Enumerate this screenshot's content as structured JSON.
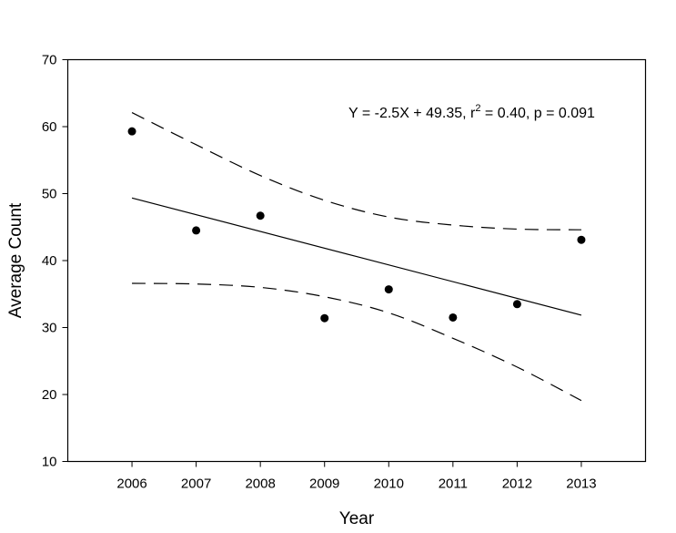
{
  "chart_data": {
    "type": "scatter",
    "title": "",
    "xlabel": "Year",
    "ylabel": "Average Count",
    "xlim": [
      2005,
      2014
    ],
    "ylim": [
      10,
      70
    ],
    "xticks": [
      2006,
      2007,
      2008,
      2009,
      2010,
      2011,
      2012,
      2013
    ],
    "xtick_labels": [
      "2006",
      "2007",
      "2008",
      "2009",
      "2010",
      "2011",
      "2012",
      "2013"
    ],
    "yticks": [
      10,
      20,
      30,
      40,
      50,
      60,
      70
    ],
    "ytick_labels": [
      "10",
      "20",
      "30",
      "40",
      "50",
      "60",
      "70"
    ],
    "grid": false,
    "series": [
      {
        "name": "Average Count",
        "kind": "points",
        "x": [
          2006,
          2007,
          2008,
          2009,
          2010,
          2011,
          2012,
          2013
        ],
        "y": [
          59.3,
          44.5,
          46.7,
          31.4,
          35.7,
          31.5,
          33.5,
          43.1
        ]
      },
      {
        "name": "Regression line",
        "kind": "line",
        "style": "solid",
        "x": [
          2006,
          2013
        ],
        "y": [
          49.35,
          31.85
        ]
      },
      {
        "name": "Upper confidence band",
        "kind": "line",
        "style": "dashed",
        "x": [
          2006,
          2007,
          2008,
          2009,
          2010,
          2011,
          2012,
          2013
        ],
        "y": [
          62.1,
          57.3,
          52.7,
          49.0,
          46.5,
          45.3,
          44.7,
          44.6
        ]
      },
      {
        "name": "Lower confidence band",
        "kind": "line",
        "style": "dashed",
        "x": [
          2006,
          2007,
          2008,
          2009,
          2010,
          2011,
          2012,
          2013
        ],
        "y": [
          36.6,
          36.5,
          36.0,
          34.6,
          32.2,
          28.4,
          24.1,
          19.1
        ]
      }
    ],
    "annotation": {
      "equation_prefix": "Y = -2.5X + 49.35, r",
      "equation_superscript": "2",
      "equation_suffix": " = 0.40, p = 0.091"
    }
  },
  "colors": {
    "background": "#ffffff",
    "ink": "#000000"
  }
}
